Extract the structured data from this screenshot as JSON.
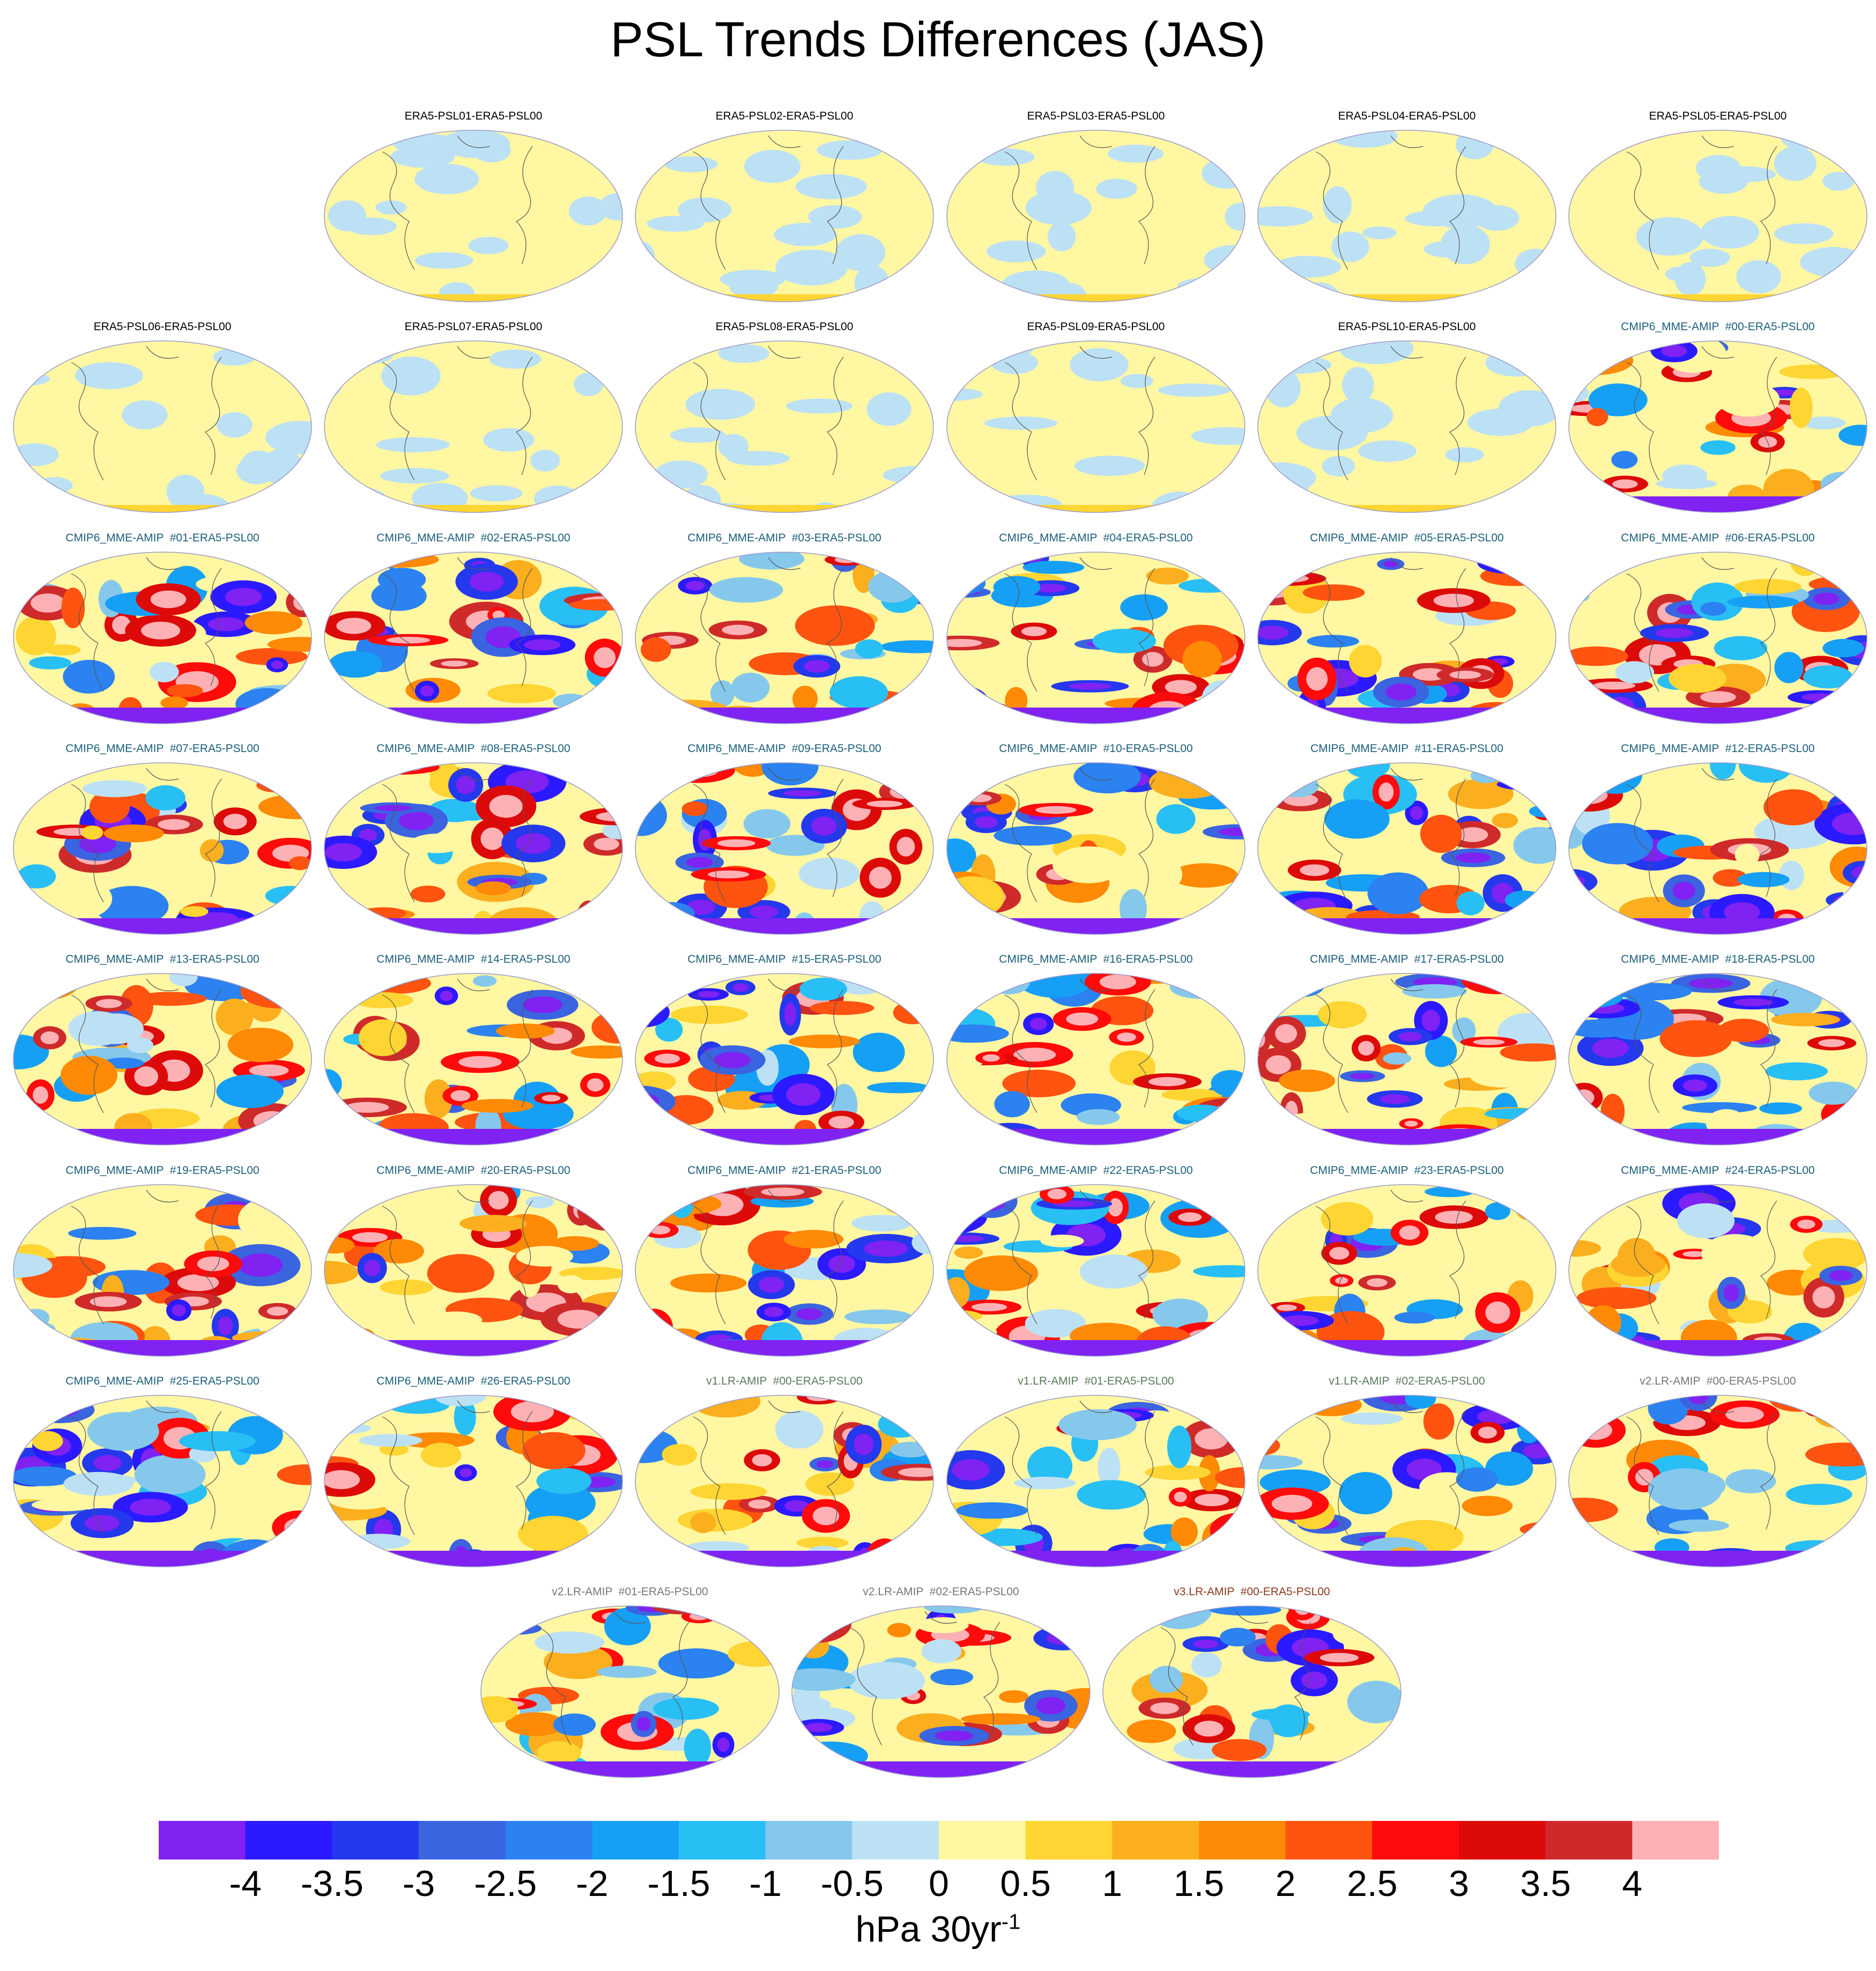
{
  "chart_data": {
    "type": "heatmap",
    "title": "PSL Trends Differences (JAS)",
    "projection": "Robinson (global maps)",
    "units_base": "hPa 30yr",
    "units_exponent": "-1",
    "colorbar": {
      "ticks": [
        "-4",
        "-3.5",
        "-3",
        "-2.5",
        "-2",
        "-1.5",
        "-1",
        "-0.5",
        "0",
        "0.5",
        "1",
        "1.5",
        "2",
        "2.5",
        "3",
        "3.5",
        "4"
      ],
      "colors": [
        "#7f22f2",
        "#2b1aff",
        "#2438ed",
        "#3a64e0",
        "#2b82f0",
        "#16a0f5",
        "#28bff5",
        "#85c8ec",
        "#bde1f4",
        "#fff7a2",
        "#fed532",
        "#fbaf1f",
        "#ff8a06",
        "#ff5310",
        "#ff0b0b",
        "#dd0a0a",
        "#cf2a2a",
        "#fdb1b4"
      ]
    },
    "panels": [
      {
        "title": "ERA5-PSL01-ERA5-PSL00",
        "group": "ERA5",
        "range": [
          -0.5,
          1.0
        ]
      },
      {
        "title": "ERA5-PSL02-ERA5-PSL00",
        "group": "ERA5",
        "range": [
          -0.5,
          1.0
        ]
      },
      {
        "title": "ERA5-PSL03-ERA5-PSL00",
        "group": "ERA5",
        "range": [
          -0.5,
          1.0
        ]
      },
      {
        "title": "ERA5-PSL04-ERA5-PSL00",
        "group": "ERA5",
        "range": [
          -0.5,
          1.0
        ]
      },
      {
        "title": "ERA5-PSL05-ERA5-PSL00",
        "group": "ERA5",
        "range": [
          -0.5,
          1.0
        ]
      },
      {
        "title": "ERA5-PSL06-ERA5-PSL00",
        "group": "ERA5",
        "range": [
          -0.5,
          1.0
        ]
      },
      {
        "title": "ERA5-PSL07-ERA5-PSL00",
        "group": "ERA5",
        "range": [
          -0.5,
          1.0
        ]
      },
      {
        "title": "ERA5-PSL08-ERA5-PSL00",
        "group": "ERA5",
        "range": [
          -0.5,
          1.0
        ]
      },
      {
        "title": "ERA5-PSL09-ERA5-PSL00",
        "group": "ERA5",
        "range": [
          -0.5,
          1.0
        ]
      },
      {
        "title": "ERA5-PSL10-ERA5-PSL00",
        "group": "ERA5",
        "range": [
          -0.5,
          1.0
        ]
      },
      {
        "title": "CMIP6_MME-AMIP  #00-ERA5-PSL00",
        "group": "CMIP6",
        "range": [
          -4.0,
          4.0
        ]
      },
      {
        "title": "CMIP6_MME-AMIP  #01-ERA5-PSL00",
        "group": "CMIP6",
        "range": [
          -4.0,
          4.0
        ]
      },
      {
        "title": "CMIP6_MME-AMIP  #02-ERA5-PSL00",
        "group": "CMIP6",
        "range": [
          -4.0,
          4.0
        ]
      },
      {
        "title": "CMIP6_MME-AMIP  #03-ERA5-PSL00",
        "group": "CMIP6",
        "range": [
          -4.0,
          4.0
        ]
      },
      {
        "title": "CMIP6_MME-AMIP  #04-ERA5-PSL00",
        "group": "CMIP6",
        "range": [
          -4.0,
          4.0
        ]
      },
      {
        "title": "CMIP6_MME-AMIP  #05-ERA5-PSL00",
        "group": "CMIP6",
        "range": [
          -4.0,
          4.0
        ]
      },
      {
        "title": "CMIP6_MME-AMIP  #06-ERA5-PSL00",
        "group": "CMIP6",
        "range": [
          -4.0,
          4.0
        ]
      },
      {
        "title": "CMIP6_MME-AMIP  #07-ERA5-PSL00",
        "group": "CMIP6",
        "range": [
          -4.0,
          4.0
        ]
      },
      {
        "title": "CMIP6_MME-AMIP  #08-ERA5-PSL00",
        "group": "CMIP6",
        "range": [
          -4.0,
          4.0
        ]
      },
      {
        "title": "CMIP6_MME-AMIP  #09-ERA5-PSL00",
        "group": "CMIP6",
        "range": [
          -4.0,
          4.0
        ]
      },
      {
        "title": "CMIP6_MME-AMIP  #10-ERA5-PSL00",
        "group": "CMIP6",
        "range": [
          -4.0,
          4.0
        ]
      },
      {
        "title": "CMIP6_MME-AMIP  #11-ERA5-PSL00",
        "group": "CMIP6",
        "range": [
          -4.0,
          4.0
        ]
      },
      {
        "title": "CMIP6_MME-AMIP  #12-ERA5-PSL00",
        "group": "CMIP6",
        "range": [
          -4.0,
          4.0
        ]
      },
      {
        "title": "CMIP6_MME-AMIP  #13-ERA5-PSL00",
        "group": "CMIP6",
        "range": [
          -4.0,
          4.0
        ]
      },
      {
        "title": "CMIP6_MME-AMIP  #14-ERA5-PSL00",
        "group": "CMIP6",
        "range": [
          -4.0,
          4.0
        ]
      },
      {
        "title": "CMIP6_MME-AMIP  #15-ERA5-PSL00",
        "group": "CMIP6",
        "range": [
          -4.0,
          4.0
        ]
      },
      {
        "title": "CMIP6_MME-AMIP  #16-ERA5-PSL00",
        "group": "CMIP6",
        "range": [
          -4.0,
          4.0
        ]
      },
      {
        "title": "CMIP6_MME-AMIP  #17-ERA5-PSL00",
        "group": "CMIP6",
        "range": [
          -4.0,
          4.0
        ]
      },
      {
        "title": "CMIP6_MME-AMIP  #18-ERA5-PSL00",
        "group": "CMIP6",
        "range": [
          -4.0,
          4.0
        ]
      },
      {
        "title": "CMIP6_MME-AMIP  #19-ERA5-PSL00",
        "group": "CMIP6",
        "range": [
          -4.0,
          4.0
        ]
      },
      {
        "title": "CMIP6_MME-AMIP  #20-ERA5-PSL00",
        "group": "CMIP6",
        "range": [
          -4.0,
          4.0
        ]
      },
      {
        "title": "CMIP6_MME-AMIP  #21-ERA5-PSL00",
        "group": "CMIP6",
        "range": [
          -4.0,
          4.0
        ]
      },
      {
        "title": "CMIP6_MME-AMIP  #22-ERA5-PSL00",
        "group": "CMIP6",
        "range": [
          -4.0,
          4.0
        ]
      },
      {
        "title": "CMIP6_MME-AMIP  #23-ERA5-PSL00",
        "group": "CMIP6",
        "range": [
          -4.0,
          4.0
        ]
      },
      {
        "title": "CMIP6_MME-AMIP  #24-ERA5-PSL00",
        "group": "CMIP6",
        "range": [
          -4.0,
          4.0
        ]
      },
      {
        "title": "CMIP6_MME-AMIP  #25-ERA5-PSL00",
        "group": "CMIP6",
        "range": [
          -4.0,
          4.0
        ]
      },
      {
        "title": "CMIP6_MME-AMIP  #26-ERA5-PSL00",
        "group": "CMIP6",
        "range": [
          -4.0,
          4.0
        ]
      },
      {
        "title": "v1.LR-AMIP  #00-ERA5-PSL00",
        "group": "v1",
        "range": [
          -4.0,
          4.0
        ]
      },
      {
        "title": "v1.LR-AMIP  #01-ERA5-PSL00",
        "group": "v1",
        "range": [
          -4.0,
          4.0
        ]
      },
      {
        "title": "v1.LR-AMIP  #02-ERA5-PSL00",
        "group": "v1",
        "range": [
          -4.0,
          4.0
        ]
      },
      {
        "title": "v2.LR-AMIP  #00-ERA5-PSL00",
        "group": "v2",
        "range": [
          -4.0,
          4.0
        ]
      },
      {
        "title": "v2.LR-AMIP  #01-ERA5-PSL00",
        "group": "v2",
        "range": [
          -4.0,
          4.0
        ]
      },
      {
        "title": "v2.LR-AMIP  #02-ERA5-PSL00",
        "group": "v2",
        "range": [
          -4.0,
          4.0
        ]
      },
      {
        "title": "v3.LR-AMIP  #00-ERA5-PSL00",
        "group": "v3",
        "range": [
          -4.0,
          4.0
        ]
      }
    ],
    "group_title_colors": {
      "ERA5": "#000000",
      "CMIP6": "#1b5e7a",
      "v1": "#5a7a5a",
      "v2": "#777777",
      "v3": "#8b3a1a"
    }
  }
}
